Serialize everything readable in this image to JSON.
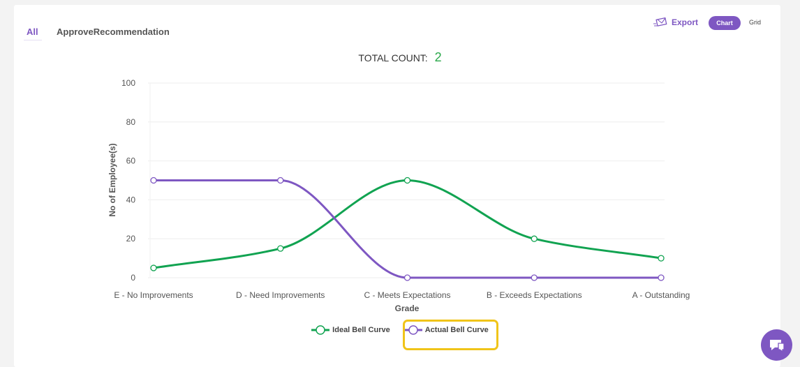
{
  "tabs": [
    {
      "label": "All"
    },
    {
      "label": "ApproveRecommendation"
    }
  ],
  "toolbar": {
    "export_label": "Export",
    "chart_label": "Chart",
    "grid_label": "Grid"
  },
  "summary": {
    "total_label": "TOTAL COUNT:",
    "total_value": "2"
  },
  "colors": {
    "accent": "#7e57c2",
    "ideal": "#11a351",
    "actual": "#7e57c2",
    "highlight": "#f0c419"
  },
  "chart_data": {
    "type": "line",
    "categories": [
      "E - No Improvements",
      "D - Need Improvements",
      "C - Meets Expectations",
      "B - Exceeds Expectations",
      "A - Outstanding"
    ],
    "series": [
      {
        "name": "Ideal Bell Curve",
        "values": [
          5,
          15,
          50,
          20,
          10
        ],
        "color": "#11a351"
      },
      {
        "name": "Actual Bell Curve",
        "values": [
          50,
          50,
          0,
          0,
          0
        ],
        "color": "#7e57c2"
      }
    ],
    "xlabel": "Grade",
    "ylabel": "No of Employee(s)",
    "ylim": [
      0,
      100
    ],
    "yticks": [
      "0",
      "20",
      "40",
      "60",
      "80",
      "100"
    ],
    "grid": true,
    "legend": "bottom"
  }
}
